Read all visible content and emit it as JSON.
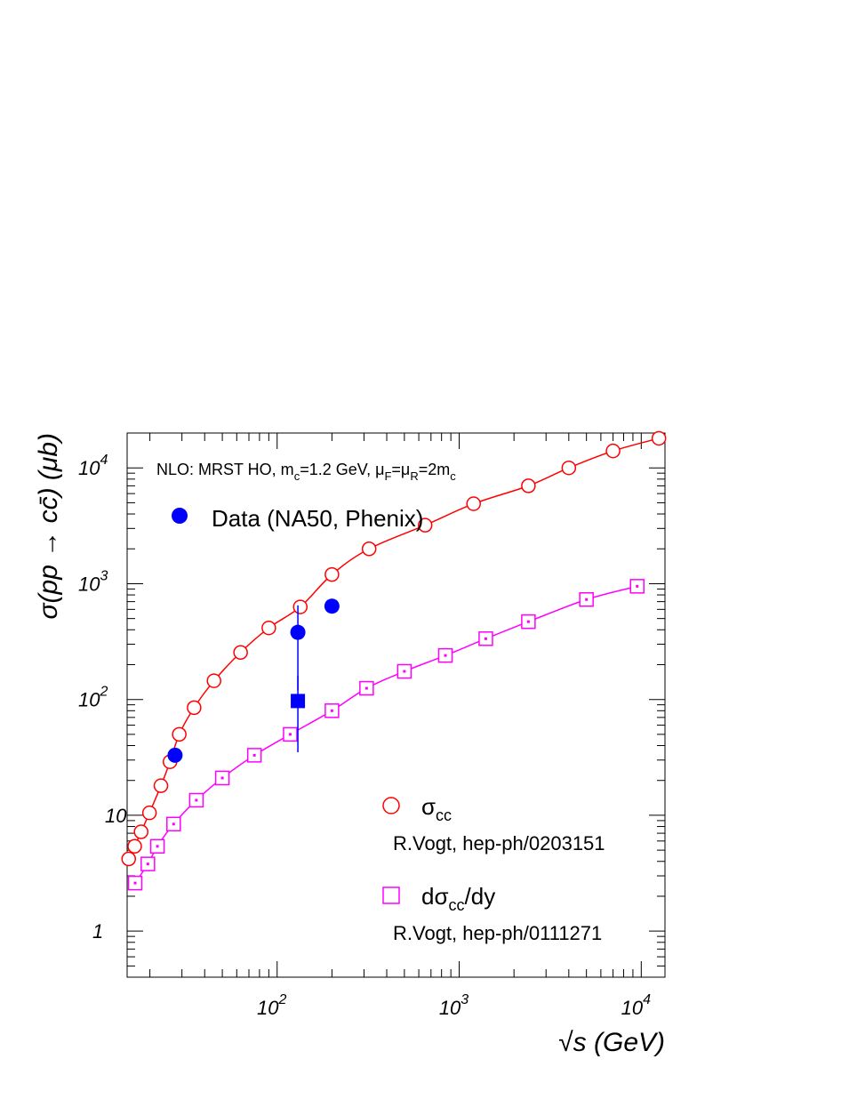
{
  "chart_data": {
    "type": "scatter",
    "title": "",
    "xlabel": "√s (GeV)",
    "ylabel": "σ(pp → cc̄) (μb)",
    "x_scale": "log",
    "y_scale": "log",
    "xlim": [
      15,
      13500
    ],
    "ylim": [
      0.4,
      20000
    ],
    "x_ticks": [
      {
        "value": 100,
        "base": "10",
        "exp": "2"
      },
      {
        "value": 1000,
        "base": "10",
        "exp": "3"
      },
      {
        "value": 10000,
        "base": "10",
        "exp": "4"
      }
    ],
    "y_ticks": [
      {
        "value": 1,
        "base": "1",
        "exp": ""
      },
      {
        "value": 10,
        "base": "10",
        "exp": ""
      },
      {
        "value": 100,
        "base": "10",
        "exp": "2"
      },
      {
        "value": 1000,
        "base": "10",
        "exp": "3"
      },
      {
        "value": 10000,
        "base": "10",
        "exp": "4"
      }
    ],
    "annotation": {
      "parts": [
        {
          "t": "NLO: MRST HO, m",
          "s": "n"
        },
        {
          "t": "c",
          "s": "sub"
        },
        {
          "t": "=1.2 GeV, μ",
          "s": "n"
        },
        {
          "t": "F",
          "s": "sub"
        },
        {
          "t": "=μ",
          "s": "n"
        },
        {
          "t": "R",
          "s": "sub"
        },
        {
          "t": "=2m",
          "s": "n"
        },
        {
          "t": "c",
          "s": "sub"
        }
      ]
    },
    "legend": {
      "data_label": "Data (NA50, Phenix)",
      "sigma_main": "σ",
      "sigma_sub": "cc",
      "sigma_ref": "R.Vogt, hep-ph/0203151",
      "dsigma_pre": "dσ",
      "dsigma_sub": "cc",
      "dsigma_post": "/dy",
      "dsigma_ref": "R.Vogt, hep-ph/0111271"
    },
    "series": [
      {
        "name": "σcc",
        "color": "#ff0000",
        "marker": "open-circle",
        "x": [
          15.3,
          16.5,
          17.9,
          19.9,
          23.0,
          25.8,
          29.0,
          35.0,
          45.0,
          63.0,
          90.0,
          134.0,
          200.0,
          320.0,
          650.0,
          1200.0,
          2400.0,
          4000.0,
          7000.0,
          12500.0
        ],
        "y": [
          4.2,
          5.4,
          7.2,
          10.5,
          18.0,
          29.0,
          50.0,
          85.0,
          145.0,
          255.0,
          415.0,
          630.0,
          1200.0,
          2000.0,
          3200.0,
          4900.0,
          7000.0,
          10000.0,
          14000.0,
          18000.0
        ]
      },
      {
        "name": "dσcc/dy",
        "color": "#ff00ff",
        "marker": "open-square",
        "x": [
          16.6,
          19.5,
          22.0,
          27.0,
          36.0,
          50.0,
          75.0,
          118.0,
          200.0,
          310.0,
          500.0,
          840.0,
          1400.0,
          2400.0,
          5000.0,
          9500.0
        ],
        "y": [
          2.6,
          3.8,
          5.4,
          8.4,
          13.5,
          21.0,
          33.0,
          50.0,
          80.0,
          125.0,
          175.0,
          240.0,
          335.0,
          470.0,
          730.0,
          950.0
        ]
      },
      {
        "name": "Data (NA50, Phenix)",
        "color": "#0000ff",
        "points": [
          {
            "x": 27.5,
            "y": 33.0,
            "marker": "filled-circle",
            "err_lo": 33.0,
            "err_hi": 33.0
          },
          {
            "x": 130.0,
            "y": 380.0,
            "marker": "filled-circle",
            "err_lo": 120.0,
            "err_hi": 650.0
          },
          {
            "x": 130.0,
            "y": 97.0,
            "marker": "filled-square",
            "err_lo": 35.0,
            "err_hi": 160.0
          },
          {
            "x": 200.0,
            "y": 640.0,
            "marker": "filled-circle",
            "err_lo": 640.0,
            "err_hi": 640.0
          }
        ]
      }
    ]
  }
}
